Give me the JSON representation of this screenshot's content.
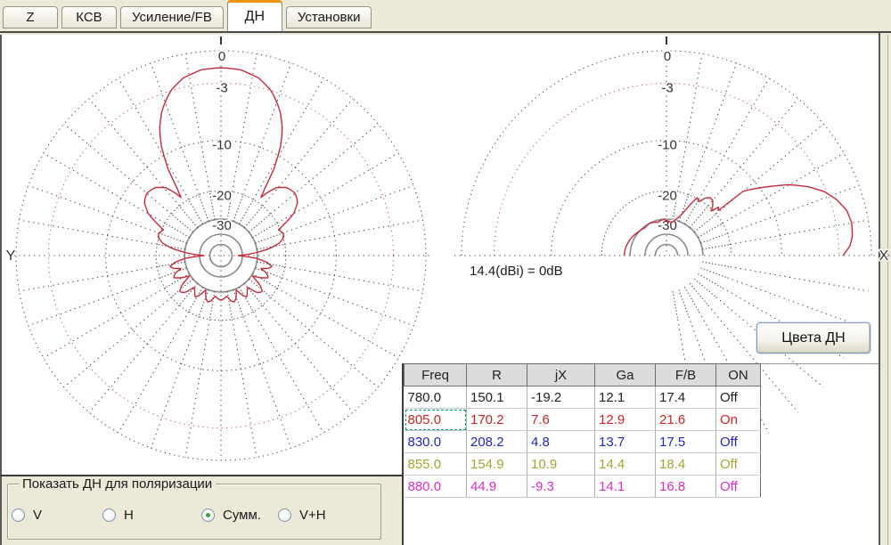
{
  "window": {
    "background": "#ECE9D8",
    "canvas": "#FFFFFF",
    "accent_orange": "#EE9311"
  },
  "tabs": [
    {
      "id": "z",
      "label": "Z",
      "active": false
    },
    {
      "id": "ksv",
      "label": "КСВ",
      "active": false
    },
    {
      "id": "gain-fb",
      "label": "Усиление/FB",
      "active": false
    },
    {
      "id": "dn",
      "label": "ДН",
      "active": true
    },
    {
      "id": "settings",
      "label": "Установки",
      "active": false
    }
  ],
  "charts": {
    "reference_label": "14.4(dBi) = 0dB",
    "ring_labels": [
      "0",
      "-3",
      "-10",
      "-20",
      "-30"
    ],
    "ring_dbs": [
      0,
      -3,
      -10,
      -20,
      -30
    ],
    "pattern_color": "#c82a3c",
    "grid_color": "#4a4a4a",
    "ring3_color": "#c25a6e",
    "left": {
      "axis_label": "Y",
      "pattern_samples": [
        [
          0,
          -1.5
        ],
        [
          6,
          -1.6
        ],
        [
          12,
          -2.1
        ],
        [
          17,
          -3.0
        ],
        [
          22,
          -4.6
        ],
        [
          26,
          -6.6
        ],
        [
          29,
          -9.0
        ],
        [
          32,
          -13.0
        ],
        [
          34,
          -19.0
        ],
        [
          36,
          -17.0
        ],
        [
          39,
          -14.8
        ],
        [
          44,
          -13.4
        ],
        [
          50,
          -13.0
        ],
        [
          55,
          -13.6
        ],
        [
          60,
          -15.5
        ],
        [
          63,
          -18.0
        ],
        [
          66,
          -20.5
        ],
        [
          70,
          -19.6
        ],
        [
          74,
          -19.9
        ],
        [
          78,
          -21.5
        ],
        [
          82,
          -25.0
        ],
        [
          86,
          -32.0
        ],
        [
          90,
          -43.0
        ],
        [
          94,
          -31.0
        ],
        [
          98,
          -26.0
        ],
        [
          102,
          -23.8
        ],
        [
          105,
          -24.8
        ],
        [
          108,
          -27.5
        ],
        [
          111,
          -25.0
        ],
        [
          115,
          -23.6
        ],
        [
          119,
          -26.0
        ],
        [
          123,
          -29.5
        ],
        [
          127,
          -25.0
        ],
        [
          131,
          -22.8
        ],
        [
          136,
          -24.0
        ],
        [
          140,
          -28.0
        ],
        [
          144,
          -26.5
        ],
        [
          148,
          -24.8
        ],
        [
          152,
          -26.5
        ],
        [
          156,
          -29.5
        ],
        [
          160,
          -26.5
        ],
        [
          164,
          -25.0
        ],
        [
          168,
          -26.0
        ],
        [
          172,
          -28.0
        ],
        [
          176,
          -27.0
        ],
        [
          180,
          -26.5
        ]
      ]
    },
    "right": {
      "axis_label": "X",
      "pattern_samples": [
        [
          0,
          -2.6
        ],
        [
          3,
          -1.9
        ],
        [
          6,
          -1.6
        ],
        [
          10,
          -1.5
        ],
        [
          14,
          -1.7
        ],
        [
          18,
          -2.3
        ],
        [
          22,
          -3.2
        ],
        [
          26,
          -4.6
        ],
        [
          30,
          -6.4
        ],
        [
          34,
          -8.8
        ],
        [
          37,
          -10.6
        ],
        [
          39,
          -11.8
        ],
        [
          40,
          -12.5
        ],
        [
          41,
          -19.0
        ],
        [
          43,
          -18.4
        ],
        [
          45,
          -20.5
        ],
        [
          47,
          -19.2
        ],
        [
          50,
          -18.2
        ],
        [
          53,
          -18.0
        ],
        [
          56,
          -18.8
        ],
        [
          59,
          -20.5
        ],
        [
          62,
          -19.8
        ],
        [
          64,
          -21.5
        ],
        [
          67,
          -24.5
        ],
        [
          70,
          -27.0
        ],
        [
          74,
          -29.0
        ],
        [
          78,
          -30.5
        ],
        [
          82,
          -31.5
        ],
        [
          86,
          -31.0
        ],
        [
          90,
          -30.5
        ],
        [
          95,
          -30.0
        ],
        [
          100,
          -30.5
        ],
        [
          105,
          -31.0
        ],
        [
          110,
          -30.5
        ],
        [
          116,
          -30.0
        ],
        [
          122,
          -30.3
        ],
        [
          128,
          -30.6
        ],
        [
          134,
          -30.2
        ],
        [
          140,
          -29.8
        ],
        [
          146,
          -29.3
        ],
        [
          152,
          -28.8
        ],
        [
          158,
          -28.4
        ],
        [
          164,
          -28.0
        ],
        [
          170,
          -27.7
        ],
        [
          176,
          -27.5
        ],
        [
          180,
          -27.4
        ]
      ]
    }
  },
  "button_colors": {
    "label": "Цвета ДН"
  },
  "table": {
    "headers": [
      "Freq",
      "R",
      "jX",
      "Ga",
      "F/B",
      "ON"
    ],
    "rows": [
      {
        "color": "#1f1f1f",
        "cells": [
          "780.0",
          "150.1",
          "-19.2",
          "12.1",
          "17.4",
          "Off"
        ]
      },
      {
        "color": "#cc2424",
        "cells": [
          "805.0",
          "170.2",
          "7.6",
          "12.9",
          "21.6",
          "On"
        ],
        "selected_cell": 0
      },
      {
        "color": "#2424cc",
        "cells": [
          "830.0",
          "208.2",
          "4.8",
          "13.7",
          "17.5",
          "Off"
        ]
      },
      {
        "color": "#a6a62e",
        "cells": [
          "855.0",
          "154.9",
          "10.9",
          "14.4",
          "18.4",
          "Off"
        ]
      },
      {
        "color": "#e02cc8",
        "cells": [
          "880.0",
          "44.9",
          "-9.3",
          "14.1",
          "16.8",
          "Off"
        ]
      }
    ]
  },
  "polarization": {
    "title": "Показать ДН для поляризации",
    "options": [
      {
        "id": "v",
        "label": "V",
        "selected": false
      },
      {
        "id": "h",
        "label": "H",
        "selected": false
      },
      {
        "id": "summ",
        "label": "Сумм.",
        "selected": true
      },
      {
        "id": "v-plus-h",
        "label": "V+H",
        "selected": false
      }
    ]
  }
}
